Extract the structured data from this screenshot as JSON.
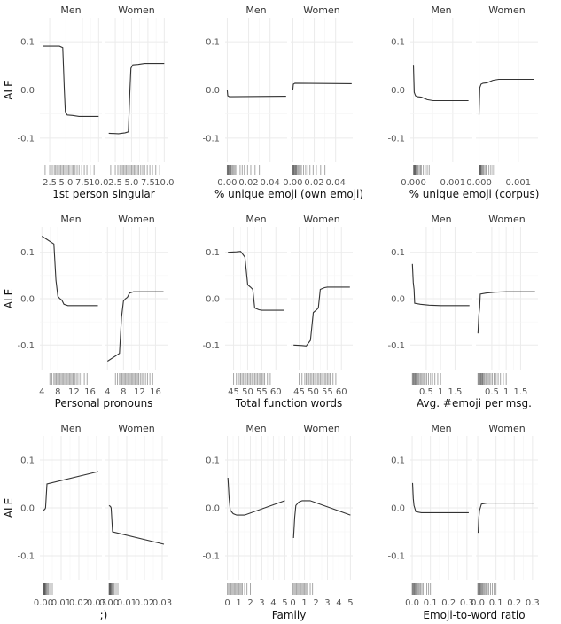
{
  "chart_data": [
    {
      "type": "line",
      "xlabel": "1st person singular",
      "ylabel": "ALE",
      "ylim": [
        -0.15,
        0.15
      ],
      "yticks": [
        0.1,
        0.0,
        -0.1
      ],
      "ytick_labels": [
        "0.1",
        "0.0",
        "-0.1"
      ],
      "xlim": [
        1,
        10.5
      ],
      "xticks": [
        2.5,
        5,
        7.5,
        10
      ],
      "xtick_labels": [
        "2.5",
        "5.0",
        "7.5",
        "10.0"
      ],
      "panels": [
        {
          "name": "Men",
          "points": [
            [
              1.5,
              0.091
            ],
            [
              4,
              0.091
            ],
            [
              4.5,
              0.088
            ],
            [
              4.75,
              0.0
            ],
            [
              4.9,
              -0.045
            ],
            [
              5.2,
              -0.052
            ],
            [
              6,
              -0.053
            ],
            [
              7,
              -0.055
            ],
            [
              10,
              -0.055
            ]
          ]
        },
        {
          "name": "Women",
          "points": [
            [
              1.5,
              -0.09
            ],
            [
              3,
              -0.091
            ],
            [
              4,
              -0.089
            ],
            [
              4.5,
              -0.087
            ],
            [
              4.75,
              0.0
            ],
            [
              4.9,
              0.045
            ],
            [
              5.2,
              0.052
            ],
            [
              6,
              0.053
            ],
            [
              7,
              0.055
            ],
            [
              10,
              0.055
            ]
          ]
        }
      ],
      "rug": [
        1.8,
        2.5,
        2.9,
        3.2,
        3.4,
        3.6,
        3.8,
        4,
        4.2,
        4.4,
        4.6,
        4.8,
        5,
        5.2,
        5.4,
        5.6,
        5.9,
        6.1,
        6.4,
        6.7,
        7,
        7.4,
        7.8,
        8.2,
        8.7,
        9.3
      ]
    },
    {
      "type": "line",
      "xlabel": "% unique emoji (own emoji)",
      "ylabel": "",
      "ylim": [
        -0.15,
        0.15
      ],
      "yticks": [
        0.1,
        0.0,
        -0.1
      ],
      "ytick_labels": [
        "0.1",
        "0.0",
        "-0.1"
      ],
      "xlim": [
        -0.002,
        0.056
      ],
      "xticks": [
        0,
        0.02,
        0.04
      ],
      "xtick_labels": [
        "0.00",
        "0.02",
        "0.04"
      ],
      "panels": [
        {
          "name": "Men",
          "points": [
            [
              0,
              0.0
            ],
            [
              0.0005,
              -0.012
            ],
            [
              0.002,
              -0.014
            ],
            [
              0.055,
              -0.013
            ]
          ]
        },
        {
          "name": "Women",
          "points": [
            [
              0,
              0.0
            ],
            [
              0.0005,
              0.012
            ],
            [
              0.002,
              0.014
            ],
            [
              0.055,
              0.013
            ]
          ]
        }
      ],
      "rug": [
        0,
        0.0003,
        0.0006,
        0.001,
        0.0015,
        0.002,
        0.0025,
        0.003,
        0.0035,
        0.004,
        0.005,
        0.006,
        0.007,
        0.008,
        0.01,
        0.012,
        0.014,
        0.016,
        0.019,
        0.022,
        0.026,
        0.03
      ]
    },
    {
      "type": "line",
      "xlabel": "% unique emoji (corpus)",
      "ylabel": "",
      "ylim": [
        -0.15,
        0.15
      ],
      "yticks": [
        0.1,
        0.0,
        -0.1
      ],
      "ytick_labels": [
        "0.1",
        "0.0",
        "-0.1"
      ],
      "xlim": [
        -8e-05,
        0.0015
      ],
      "xticks": [
        0,
        0.001
      ],
      "xtick_labels": [
        "0.000",
        "0.001"
      ],
      "panels": [
        {
          "name": "Men",
          "points": [
            [
              0,
              0.052
            ],
            [
              2e-05,
              -0.005
            ],
            [
              5e-05,
              -0.012
            ],
            [
              0.0001,
              -0.014
            ],
            [
              0.0002,
              -0.015
            ],
            [
              0.00035,
              -0.02
            ],
            [
              0.0005,
              -0.022
            ],
            [
              0.0014,
              -0.022
            ]
          ]
        },
        {
          "name": "Women",
          "points": [
            [
              0,
              -0.052
            ],
            [
              2e-05,
              0.005
            ],
            [
              5e-05,
              0.012
            ],
            [
              0.0001,
              0.014
            ],
            [
              0.0002,
              0.015
            ],
            [
              0.00035,
              0.02
            ],
            [
              0.0005,
              0.022
            ],
            [
              0.0014,
              0.022
            ]
          ]
        }
      ],
      "rug": [
        0,
        1e-05,
        2e-05,
        3e-05,
        4e-05,
        5e-05,
        6e-05,
        8e-05,
        0.0001,
        0.00012,
        0.00015,
        0.00018,
        0.0002,
        0.00025,
        0.0003,
        0.00035,
        0.0004
      ]
    },
    {
      "type": "line",
      "xlabel": "Personal pronouns",
      "ylabel": "ALE",
      "ylim": [
        -0.155,
        0.155
      ],
      "yticks": [
        0.1,
        0.0,
        -0.1
      ],
      "ytick_labels": [
        "0.1",
        "0.0",
        "-0.1"
      ],
      "xlim": [
        3.5,
        19
      ],
      "xticks": [
        4,
        8,
        12,
        16
      ],
      "xtick_labels": [
        "4",
        "8",
        "12",
        "16"
      ],
      "panels": [
        {
          "name": "Men",
          "points": [
            [
              4,
              0.135
            ],
            [
              7,
              0.118
            ],
            [
              7.5,
              0.04
            ],
            [
              8,
              0.005
            ],
            [
              8.5,
              0.0
            ],
            [
              9,
              -0.003
            ],
            [
              9.5,
              -0.012
            ],
            [
              10.5,
              -0.015
            ],
            [
              18,
              -0.015
            ]
          ]
        },
        {
          "name": "Women",
          "points": [
            [
              4,
              -0.135
            ],
            [
              7,
              -0.118
            ],
            [
              7.5,
              -0.04
            ],
            [
              8,
              -0.005
            ],
            [
              8.5,
              0.0
            ],
            [
              9,
              0.003
            ],
            [
              9.5,
              0.012
            ],
            [
              10.5,
              0.015
            ],
            [
              18,
              0.015
            ]
          ]
        }
      ],
      "rug": [
        6,
        6.5,
        7,
        7.3,
        7.6,
        7.9,
        8.2,
        8.5,
        8.8,
        9.1,
        9.4,
        9.7,
        10,
        10.3,
        10.6,
        10.9,
        11.2,
        11.5,
        11.8,
        12.2,
        12.6,
        13,
        13.5,
        14,
        14.6,
        15.3
      ]
    },
    {
      "type": "line",
      "xlabel": "Total function words",
      "ylabel": "",
      "ylim": [
        -0.155,
        0.155
      ],
      "yticks": [
        0.1,
        0.0,
        -0.1
      ],
      "ytick_labels": [
        "0.1",
        "0.0",
        "-0.1"
      ],
      "xlim": [
        42,
        64
      ],
      "xticks": [
        45,
        50,
        55,
        60
      ],
      "xtick_labels": [
        "45",
        "50",
        "55",
        "60"
      ],
      "panels": [
        {
          "name": "Men",
          "points": [
            [
              43,
              0.1
            ],
            [
              46,
              0.101
            ],
            [
              47.5,
              0.102
            ],
            [
              49,
              0.09
            ],
            [
              50,
              0.03
            ],
            [
              51,
              0.025
            ],
            [
              51.8,
              0.02
            ],
            [
              52.5,
              -0.02
            ],
            [
              54,
              -0.024
            ],
            [
              55,
              -0.025
            ],
            [
              63,
              -0.025
            ]
          ]
        },
        {
          "name": "Women",
          "points": [
            [
              43,
              -0.1
            ],
            [
              46,
              -0.101
            ],
            [
              47.5,
              -0.102
            ],
            [
              49,
              -0.09
            ],
            [
              50,
              -0.03
            ],
            [
              51,
              -0.025
            ],
            [
              51.8,
              -0.02
            ],
            [
              52.5,
              0.02
            ],
            [
              54,
              0.024
            ],
            [
              55,
              0.025
            ],
            [
              63,
              0.025
            ]
          ]
        }
      ],
      "rug": [
        45,
        46,
        47,
        47.5,
        48,
        48.5,
        49,
        49.5,
        50,
        50.5,
        51,
        51.5,
        52,
        52.5,
        53,
        53.5,
        54,
        54.5,
        55,
        55.5,
        56,
        57,
        58
      ]
    },
    {
      "type": "line",
      "xlabel": "Avg. #emoji per msg.",
      "ylabel": "",
      "ylim": [
        -0.155,
        0.155
      ],
      "yticks": [
        0.1,
        0.0,
        -0.1
      ],
      "ytick_labels": [
        "0.1",
        "0.0",
        "-0.1"
      ],
      "xlim": [
        -0.05,
        2.1
      ],
      "xticks": [
        0.5,
        1,
        1.5
      ],
      "xtick_labels": [
        "0.5",
        "1",
        "1.5"
      ],
      "panels": [
        {
          "name": "Men",
          "points": [
            [
              0.02,
              0.075
            ],
            [
              0.05,
              0.035
            ],
            [
              0.08,
              0.02
            ],
            [
              0.1,
              -0.01
            ],
            [
              0.3,
              -0.012
            ],
            [
              0.6,
              -0.014
            ],
            [
              1.0,
              -0.015
            ],
            [
              2.0,
              -0.015
            ]
          ]
        },
        {
          "name": "Women",
          "points": [
            [
              0.02,
              -0.075
            ],
            [
              0.05,
              -0.035
            ],
            [
              0.08,
              -0.02
            ],
            [
              0.1,
              0.01
            ],
            [
              0.3,
              0.012
            ],
            [
              0.6,
              0.014
            ],
            [
              1.0,
              0.015
            ],
            [
              2.0,
              0.015
            ]
          ]
        }
      ],
      "rug": [
        0.02,
        0.04,
        0.06,
        0.08,
        0.1,
        0.12,
        0.14,
        0.16,
        0.18,
        0.2,
        0.23,
        0.26,
        0.3,
        0.34,
        0.38,
        0.42,
        0.47,
        0.52,
        0.58,
        0.65,
        0.72,
        0.8,
        0.9,
        1.0
      ]
    },
    {
      "type": "line",
      "xlabel": ";)",
      "ylabel": "ALE",
      "ylim": [
        -0.15,
        0.15
      ],
      "yticks": [
        0.1,
        0.0,
        -0.1
      ],
      "ytick_labels": [
        "0.1",
        "0.0",
        "-0.1"
      ],
      "xlim": [
        -0.002,
        0.033
      ],
      "xticks": [
        0,
        0.01,
        0.02,
        0.03
      ],
      "xtick_labels": [
        "0.00",
        "0.01",
        "0.02",
        "0.03"
      ],
      "panels": [
        {
          "name": "Men",
          "points": [
            [
              0,
              -0.005
            ],
            [
              0.0008,
              -0.003
            ],
            [
              0.0012,
              0.0
            ],
            [
              0.002,
              0.05
            ],
            [
              0.031,
              0.076
            ]
          ]
        },
        {
          "name": "Women",
          "points": [
            [
              0,
              0.005
            ],
            [
              0.0008,
              0.003
            ],
            [
              0.0012,
              0.0
            ],
            [
              0.002,
              -0.05
            ],
            [
              0.031,
              -0.076
            ]
          ]
        }
      ],
      "rug": [
        0,
        0.0002,
        0.0004,
        0.0006,
        0.0008,
        0.001,
        0.0013,
        0.0016,
        0.002,
        0.0025,
        0.003,
        0.004,
        0.005
      ]
    },
    {
      "type": "line",
      "xlabel": "Family",
      "ylabel": "",
      "ylim": [
        -0.15,
        0.15
      ],
      "yticks": [
        0.1,
        0.0,
        -0.1
      ],
      "ytick_labels": [
        "0.1",
        "0.0",
        "-0.1"
      ],
      "xlim": [
        -0.2,
        5.2
      ],
      "xticks": [
        0,
        1,
        2,
        3,
        4,
        5
      ],
      "xtick_labels": [
        "0",
        "1",
        "2",
        "3",
        "4",
        "5"
      ],
      "panels": [
        {
          "name": "Men",
          "points": [
            [
              0.05,
              0.063
            ],
            [
              0.15,
              0.02
            ],
            [
              0.25,
              -0.005
            ],
            [
              0.5,
              -0.012
            ],
            [
              0.8,
              -0.015
            ],
            [
              1.5,
              -0.015
            ],
            [
              5,
              0.015
            ]
          ]
        },
        {
          "name": "Women",
          "points": [
            [
              0.05,
              -0.063
            ],
            [
              0.15,
              -0.02
            ],
            [
              0.25,
              0.005
            ],
            [
              0.5,
              0.012
            ],
            [
              0.8,
              0.015
            ],
            [
              1.5,
              0.015
            ],
            [
              5,
              -0.015
            ]
          ]
        }
      ],
      "rug": [
        0,
        0.1,
        0.2,
        0.3,
        0.4,
        0.5,
        0.6,
        0.7,
        0.8,
        0.9,
        1.0,
        1.1,
        1.2,
        1.3,
        1.5,
        1.7,
        2.0
      ]
    },
    {
      "type": "line",
      "xlabel": "Emoji-to-word ratio",
      "ylabel": "",
      "ylim": [
        -0.15,
        0.15
      ],
      "yticks": [
        0.1,
        0.0,
        -0.1
      ],
      "ytick_labels": [
        "0.1",
        "0.0",
        "-0.1"
      ],
      "xlim": [
        -0.01,
        0.33
      ],
      "xticks": [
        0,
        0.1,
        0.2,
        0.3
      ],
      "xtick_labels": [
        "0.0",
        "0.1",
        "0.2",
        "0.3"
      ],
      "panels": [
        {
          "name": "Men",
          "points": [
            [
              0.002,
              0.052
            ],
            [
              0.006,
              0.02
            ],
            [
              0.01,
              0.005
            ],
            [
              0.02,
              -0.008
            ],
            [
              0.05,
              -0.01
            ],
            [
              0.31,
              -0.01
            ]
          ]
        },
        {
          "name": "Women",
          "points": [
            [
              0.002,
              -0.052
            ],
            [
              0.006,
              -0.02
            ],
            [
              0.01,
              -0.005
            ],
            [
              0.02,
              0.008
            ],
            [
              0.05,
              0.01
            ],
            [
              0.31,
              0.01
            ]
          ]
        }
      ],
      "rug": [
        0,
        0.003,
        0.006,
        0.009,
        0.012,
        0.015,
        0.018,
        0.022,
        0.026,
        0.03,
        0.035,
        0.04,
        0.046,
        0.053,
        0.06,
        0.07,
        0.08,
        0.09,
        0.1
      ]
    }
  ]
}
